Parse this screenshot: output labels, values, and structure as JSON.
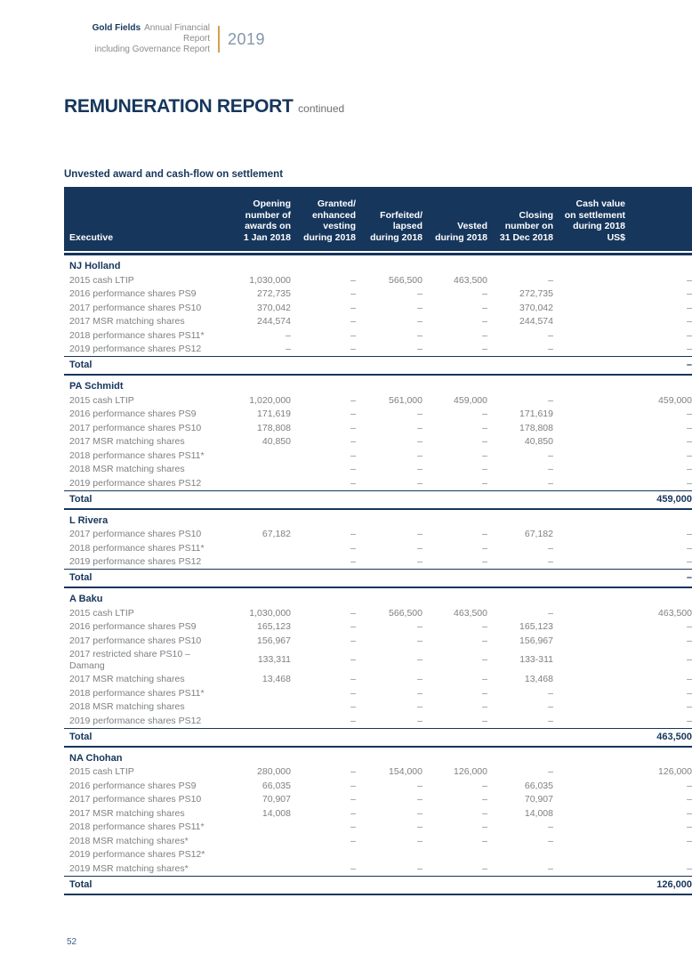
{
  "colors": {
    "navy": "#16365c",
    "gold_accent": "#d2a24c",
    "body_gray": "#7e8083",
    "year_gray": "#8495aa"
  },
  "brand": {
    "name": "Gold Fields",
    "tagline_line1": "Annual Financial Report",
    "tagline_line2": "including Governance Report",
    "year": "2019"
  },
  "title": {
    "main": "REMUNERATION REPORT",
    "suffix": "continued"
  },
  "table": {
    "caption": "Unvested award and cash-flow on settlement",
    "headers": [
      {
        "id": "executive",
        "lines": [
          "Executive"
        ]
      },
      {
        "id": "opening",
        "lines": [
          "Opening",
          "number of",
          "awards on",
          "1 Jan 2018"
        ]
      },
      {
        "id": "granted",
        "lines": [
          "Granted/",
          "enhanced",
          "vesting",
          "during 2018"
        ]
      },
      {
        "id": "forfeited",
        "lines": [
          "Forfeited/",
          "lapsed",
          "during 2018"
        ]
      },
      {
        "id": "vested",
        "lines": [
          "Vested",
          "during 2018"
        ]
      },
      {
        "id": "closing",
        "lines": [
          "Closing",
          "number on",
          "31 Dec 2018"
        ]
      },
      {
        "id": "cash-value",
        "lines": [
          "Cash value",
          "on settlement",
          "during 2018",
          "US$"
        ]
      }
    ],
    "total_label": "Total",
    "sections": [
      {
        "executive": "NJ Holland",
        "rows": [
          {
            "label": "2015 cash LTIP",
            "values": [
              "1,030,000",
              "–",
              "566,500",
              "463,500",
              "–",
              "–"
            ]
          },
          {
            "label": "2016 performance shares PS9",
            "values": [
              "272,735",
              "–",
              "–",
              "–",
              "272,735",
              "–"
            ]
          },
          {
            "label": "2017 performance shares PS10",
            "values": [
              "370,042",
              "–",
              "–",
              "–",
              "370,042",
              "–"
            ]
          },
          {
            "label": "2017 MSR matching shares",
            "values": [
              "244,574",
              "–",
              "–",
              "–",
              "244,574",
              "–"
            ]
          },
          {
            "label": "2018 performance shares PS11*",
            "values": [
              "–",
              "–",
              "–",
              "–",
              "–",
              "–"
            ]
          },
          {
            "label": "2019 performance shares PS12",
            "values": [
              "–",
              "–",
              "–",
              "–",
              "–",
              "–"
            ]
          }
        ],
        "total_value": "–"
      },
      {
        "executive": "PA Schmidt",
        "rows": [
          {
            "label": "2015 cash LTIP",
            "values": [
              "1,020,000",
              "–",
              "561,000",
              "459,000",
              "–",
              "459,000"
            ]
          },
          {
            "label": "2016 performance shares PS9",
            "values": [
              "171,619",
              "–",
              "–",
              "–",
              "171,619",
              "–"
            ]
          },
          {
            "label": "2017 performance shares PS10",
            "values": [
              "178,808",
              "–",
              "–",
              "–",
              "178,808",
              "–"
            ]
          },
          {
            "label": "2017 MSR matching shares",
            "values": [
              "40,850",
              "–",
              "–",
              "–",
              "40,850",
              "–"
            ]
          },
          {
            "label": "2018 performance shares PS11*",
            "values": [
              "",
              "–",
              "–",
              "–",
              "–",
              "–"
            ]
          },
          {
            "label": "2018 MSR matching shares",
            "values": [
              "",
              "–",
              "–",
              "–",
              "–",
              "–"
            ]
          },
          {
            "label": "2019 performance shares PS12",
            "values": [
              "",
              "–",
              "–",
              "–",
              "–",
              "–"
            ]
          }
        ],
        "total_value": "459,000"
      },
      {
        "executive": "L Rivera",
        "rows": [
          {
            "label": "2017 performance shares PS10",
            "values": [
              "67,182",
              "–",
              "–",
              "–",
              "67,182",
              "–"
            ]
          },
          {
            "label": "2018 performance shares PS11*",
            "values": [
              "",
              "–",
              "–",
              "–",
              "–",
              "–"
            ]
          },
          {
            "label": "2019 performance shares PS12",
            "values": [
              "",
              "–",
              "–",
              "–",
              "–",
              "–"
            ]
          }
        ],
        "total_value": "–"
      },
      {
        "executive": "A Baku",
        "rows": [
          {
            "label": "2015 cash LTIP",
            "values": [
              "1,030,000",
              "–",
              "566,500",
              "463,500",
              "–",
              "463,500"
            ]
          },
          {
            "label": "2016 performance shares PS9",
            "values": [
              "165,123",
              "–",
              "–",
              "–",
              "165,123",
              "–"
            ]
          },
          {
            "label": "2017 performance shares PS10",
            "values": [
              "156,967",
              "–",
              "–",
              "–",
              "156,967",
              "–"
            ]
          },
          {
            "label": "2017 restricted share PS10 – Damang",
            "values": [
              "133,311",
              "–",
              "–",
              "–",
              "133-311",
              "–"
            ]
          },
          {
            "label": "2017 MSR matching shares",
            "values": [
              "13,468",
              "–",
              "–",
              "–",
              "13,468",
              "–"
            ]
          },
          {
            "label": "2018 performance shares PS11*",
            "values": [
              "",
              "–",
              "–",
              "–",
              "–",
              "–"
            ]
          },
          {
            "label": "2018 MSR matching shares",
            "values": [
              "",
              "–",
              "–",
              "–",
              "–",
              "–"
            ]
          },
          {
            "label": "2019 performance shares PS12",
            "values": [
              "",
              "–",
              "–",
              "–",
              "–",
              "–"
            ]
          }
        ],
        "total_value": "463,500"
      },
      {
        "executive": "NA Chohan",
        "rows": [
          {
            "label": "2015 cash LTIP",
            "values": [
              "280,000",
              "–",
              "154,000",
              "126,000",
              "–",
              "126,000"
            ]
          },
          {
            "label": "2016 performance shares PS9",
            "values": [
              "66,035",
              "–",
              "–",
              "–",
              "66,035",
              "–"
            ]
          },
          {
            "label": "2017 performance shares PS10",
            "values": [
              "70,907",
              "–",
              "–",
              "–",
              "70,907",
              "–"
            ]
          },
          {
            "label": "2017 MSR matching shares",
            "values": [
              "14,008",
              "–",
              "–",
              "–",
              "14,008",
              "–"
            ]
          },
          {
            "label": "2018 performance shares PS11*",
            "values": [
              "",
              "–",
              "–",
              "–",
              "–",
              "–"
            ]
          },
          {
            "label": "2018 MSR matching shares*",
            "values": [
              "",
              "–",
              "–",
              "–",
              "–",
              "–"
            ]
          },
          {
            "label": "2019 performance shares PS12*",
            "values": [
              "",
              "",
              "",
              "",
              "",
              ""
            ]
          },
          {
            "label": "2019 MSR matching shares*",
            "values": [
              "",
              "–",
              "–",
              "–",
              "–",
              "–"
            ]
          }
        ],
        "total_value": "126,000"
      }
    ]
  },
  "footer": {
    "page_number": "52"
  }
}
